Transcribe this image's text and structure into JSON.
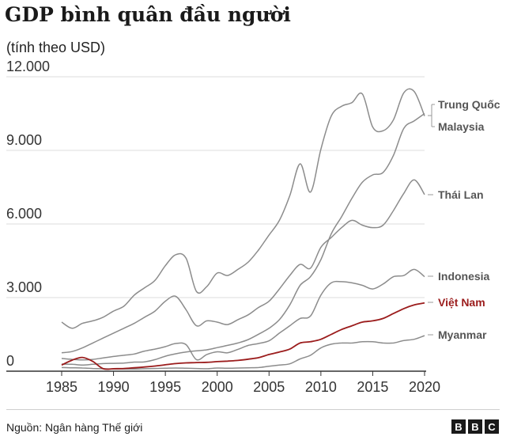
{
  "title": "GDP bình quân đầu người",
  "subtitle": "(tính theo USD)",
  "source": "Nguồn: Ngân hàng Thế giới",
  "logo": [
    "B",
    "B",
    "C"
  ],
  "colors": {
    "text": "#1a1a1a",
    "grey_line": "#8c8c8c",
    "highlight": "#9b1c1c",
    "grid": "#dddddd"
  },
  "chart_data": {
    "type": "line",
    "xlim": [
      1985,
      2020
    ],
    "ylim": [
      0,
      12000
    ],
    "x_ticks": [
      "1985",
      "1990",
      "1995",
      "2000",
      "2005",
      "2010",
      "2015",
      "2020"
    ],
    "y_ticks": [
      "0",
      "3.000",
      "6.000",
      "9.000",
      "12.000"
    ],
    "x": [
      1985,
      1986,
      1987,
      1988,
      1989,
      1990,
      1991,
      1992,
      1993,
      1994,
      1995,
      1996,
      1997,
      1998,
      1999,
      2000,
      2001,
      2002,
      2003,
      2004,
      2005,
      2006,
      2007,
      2008,
      2009,
      2010,
      2011,
      2012,
      2013,
      2014,
      2015,
      2016,
      2017,
      2018,
      2019,
      2020
    ],
    "grid": true,
    "series": [
      {
        "name": "Trung Quốc",
        "highlight": false,
        "values": [
          290,
          280,
          250,
          280,
          310,
          320,
          330,
          370,
          380,
          470,
          610,
          710,
          780,
          830,
          870,
          960,
          1050,
          1150,
          1290,
          1510,
          1750,
          2100,
          2700,
          3500,
          3850,
          4550,
          5600,
          6300,
          7050,
          7700,
          8000,
          8100,
          8800,
          9900,
          10200,
          10500
        ]
      },
      {
        "name": "Malaysia",
        "highlight": false,
        "values": [
          2000,
          1750,
          1950,
          2050,
          2200,
          2450,
          2650,
          3100,
          3400,
          3700,
          4300,
          4750,
          4600,
          3250,
          3450,
          4000,
          3900,
          4150,
          4450,
          4950,
          5550,
          6150,
          7150,
          8450,
          7300,
          9050,
          10400,
          10800,
          10950,
          11300,
          9950,
          9800,
          10250,
          11350,
          11400,
          10400
        ]
      },
      {
        "name": "Thái Lan",
        "highlight": false,
        "values": [
          750,
          800,
          950,
          1150,
          1350,
          1550,
          1750,
          1950,
          2200,
          2450,
          2850,
          3050,
          2500,
          1850,
          2050,
          2000,
          1900,
          2100,
          2300,
          2600,
          2850,
          3350,
          3900,
          4350,
          4200,
          5050,
          5450,
          5850,
          6150,
          5950,
          5850,
          5950,
          6550,
          7250,
          7800,
          7200
        ]
      },
      {
        "name": "Indonesia",
        "highlight": false,
        "values": [
          520,
          480,
          460,
          480,
          540,
          600,
          650,
          700,
          820,
          900,
          1000,
          1130,
          1080,
          470,
          680,
          790,
          750,
          890,
          1050,
          1130,
          1240,
          1550,
          1850,
          2150,
          2250,
          3100,
          3600,
          3650,
          3600,
          3500,
          3350,
          3550,
          3850,
          3900,
          4150,
          3850
        ]
      },
      {
        "name": "Việt Nam",
        "highlight": true,
        "values": [
          250,
          450,
          560,
          400,
          100,
          100,
          110,
          140,
          170,
          210,
          260,
          310,
          340,
          350,
          360,
          390,
          410,
          440,
          490,
          550,
          680,
          780,
          900,
          1150,
          1200,
          1300,
          1500,
          1700,
          1850,
          2000,
          2050,
          2150,
          2350,
          2550,
          2700,
          2780
        ]
      },
      {
        "name": "Myanmar",
        "highlight": false,
        "values": [
          150,
          140,
          130,
          110,
          100,
          90,
          90,
          90,
          100,
          110,
          120,
          130,
          120,
          110,
          100,
          130,
          120,
          130,
          140,
          150,
          200,
          250,
          300,
          500,
          650,
          950,
          1100,
          1150,
          1150,
          1200,
          1200,
          1150,
          1150,
          1250,
          1300,
          1450
        ]
      }
    ]
  }
}
